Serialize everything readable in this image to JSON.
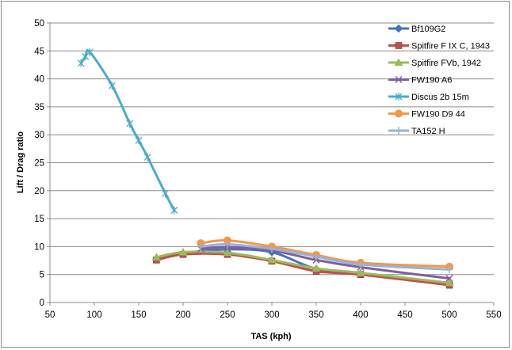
{
  "chart_data": {
    "type": "scatter",
    "title": "",
    "xlabel": "TAS (kph)",
    "ylabel": "Lift / Drag ratio",
    "xlim": [
      50,
      550
    ],
    "ylim": [
      0,
      50
    ],
    "xticks": [
      50,
      100,
      150,
      200,
      250,
      300,
      350,
      400,
      450,
      500,
      550
    ],
    "yticks": [
      0,
      5,
      10,
      15,
      20,
      25,
      30,
      35,
      40,
      45,
      50
    ],
    "grid": "horizontal",
    "legend_position": "right",
    "lines": "smoothed",
    "series": [
      {
        "name": "Bf109G2",
        "color": "#4472c4",
        "marker": "diamond",
        "x": [
          170,
          200,
          250,
          300,
          350,
          400,
          500
        ],
        "y": [
          7.8,
          8.8,
          9.5,
          9.0,
          6.0,
          5.2,
          3.3
        ]
      },
      {
        "name": "Spitfire F IX C, 1943",
        "color": "#c0504d",
        "marker": "square",
        "x": [
          170,
          200,
          250,
          300,
          350,
          400,
          500
        ],
        "y": [
          7.6,
          8.6,
          8.6,
          7.4,
          5.6,
          5.0,
          3.1
        ]
      },
      {
        "name": "Spitfire FVb, 1942",
        "color": "#9bbb59",
        "marker": "triangle",
        "x": [
          170,
          200,
          250,
          300,
          350,
          400,
          500
        ],
        "y": [
          8.1,
          9.0,
          8.9,
          7.6,
          6.1,
          5.3,
          3.5
        ]
      },
      {
        "name": "FW190 A6",
        "color": "#7f5fa0",
        "marker": "x",
        "x": [
          220,
          250,
          300,
          350,
          400,
          500
        ],
        "y": [
          9.6,
          9.9,
          9.3,
          7.6,
          6.3,
          4.3
        ]
      },
      {
        "name": "Discus 2b 15m",
        "color": "#4bacc6",
        "marker": "star",
        "x": [
          85,
          90,
          95,
          120,
          140,
          150,
          160,
          180,
          190
        ],
        "y": [
          42.8,
          44.0,
          44.8,
          38.8,
          32.0,
          29.0,
          26.0,
          19.5,
          16.5
        ]
      },
      {
        "name": "FW190 D9 44",
        "color": "#f79646",
        "marker": "circle",
        "x": [
          220,
          250,
          300,
          350,
          400,
          500
        ],
        "y": [
          10.6,
          11.1,
          10.0,
          8.5,
          7.1,
          6.4
        ]
      },
      {
        "name": "TA152 H",
        "color": "#95b3d7",
        "marker": "plus",
        "x": [
          220,
          250,
          300,
          350,
          400,
          500
        ],
        "y": [
          10.0,
          10.4,
          9.6,
          8.2,
          6.8,
          5.9
        ]
      }
    ]
  }
}
